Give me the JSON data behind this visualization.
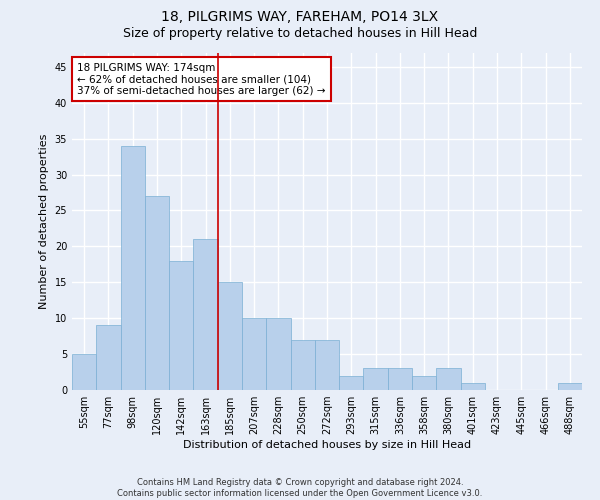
{
  "title1": "18, PILGRIMS WAY, FAREHAM, PO14 3LX",
  "title2": "Size of property relative to detached houses in Hill Head",
  "xlabel": "Distribution of detached houses by size in Hill Head",
  "ylabel": "Number of detached properties",
  "categories": [
    "55sqm",
    "77sqm",
    "98sqm",
    "120sqm",
    "142sqm",
    "163sqm",
    "185sqm",
    "207sqm",
    "228sqm",
    "250sqm",
    "272sqm",
    "293sqm",
    "315sqm",
    "336sqm",
    "358sqm",
    "380sqm",
    "401sqm",
    "423sqm",
    "445sqm",
    "466sqm",
    "488sqm"
  ],
  "values": [
    5,
    9,
    34,
    27,
    18,
    21,
    15,
    10,
    10,
    7,
    7,
    2,
    3,
    3,
    2,
    3,
    1,
    0,
    0,
    0,
    1
  ],
  "bar_color": "#b8d0eb",
  "bar_edge_color": "#7aafd4",
  "bar_width": 1.0,
  "vline_x": 5.5,
  "vline_color": "#cc0000",
  "annotation_text": "18 PILGRIMS WAY: 174sqm\n← 62% of detached houses are smaller (104)\n37% of semi-detached houses are larger (62) →",
  "annotation_box_color": "#ffffff",
  "annotation_box_edgecolor": "#cc0000",
  "annotation_fontsize": 7.5,
  "ylim": [
    0,
    47
  ],
  "yticks": [
    0,
    5,
    10,
    15,
    20,
    25,
    30,
    35,
    40,
    45
  ],
  "footnote": "Contains HM Land Registry data © Crown copyright and database right 2024.\nContains public sector information licensed under the Open Government Licence v3.0.",
  "bg_color": "#e8eef8",
  "plot_bg_color": "#e8eef8",
  "grid_color": "#ffffff",
  "title_fontsize": 10,
  "subtitle_fontsize": 9,
  "axis_label_fontsize": 8,
  "tick_fontsize": 7
}
